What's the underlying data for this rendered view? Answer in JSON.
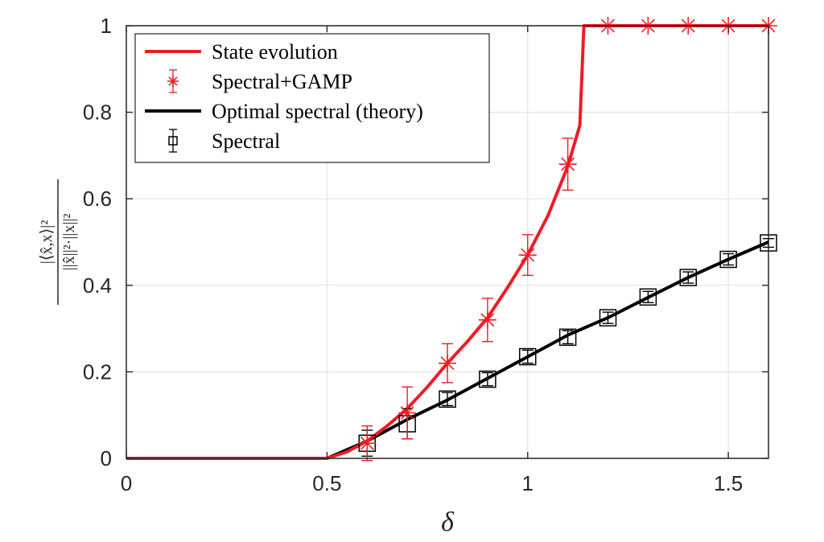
{
  "chart_data": {
    "type": "line",
    "title": "",
    "xlabel": "δ",
    "ylabel": {
      "numerator": "|⟨x̂,x⟩|²",
      "denominator": "||x̂||²·||x||²"
    },
    "xlim": [
      0,
      1.6
    ],
    "ylim": [
      0,
      1
    ],
    "xticks": [
      0,
      0.5,
      1,
      1.5
    ],
    "xtick_labels": [
      "0",
      "0.5",
      "1",
      "1.5"
    ],
    "yticks": [
      0,
      0.2,
      0.4,
      0.6,
      0.8,
      1
    ],
    "ytick_labels": [
      "0",
      "0.2",
      "0.4",
      "0.6",
      "0.8",
      "1"
    ],
    "grid": true,
    "legend_position": "top-left",
    "series": [
      {
        "name": "State evolution",
        "kind": "line",
        "color": "#ee1c25",
        "x": [
          0,
          0.5,
          0.55,
          0.6,
          0.65,
          0.7,
          0.75,
          0.8,
          0.85,
          0.9,
          0.95,
          1.0,
          1.05,
          1.1,
          1.13,
          1.14,
          1.6
        ],
        "y": [
          0,
          0,
          0.015,
          0.04,
          0.075,
          0.115,
          0.165,
          0.22,
          0.27,
          0.325,
          0.395,
          0.47,
          0.56,
          0.675,
          0.77,
          1.0,
          1.0
        ]
      },
      {
        "name": "Spectral+GAMP",
        "kind": "errorbar",
        "marker": "asterisk",
        "color": "#ee1c25",
        "x": [
          0.6,
          0.7,
          0.8,
          0.9,
          1.0,
          1.1,
          1.2,
          1.3,
          1.4,
          1.5,
          1.6
        ],
        "y": [
          0.035,
          0.105,
          0.22,
          0.32,
          0.47,
          0.68,
          1.0,
          1.0,
          1.0,
          1.0,
          1.0
        ],
        "err": [
          0.04,
          0.06,
          0.045,
          0.05,
          0.047,
          0.06,
          0,
          0,
          0,
          0,
          0
        ]
      },
      {
        "name": "Optimal spectral (theory)",
        "kind": "line",
        "color": "#000000",
        "x": [
          0,
          0.5,
          0.6,
          0.7,
          0.8,
          0.9,
          1.0,
          1.1,
          1.2,
          1.3,
          1.4,
          1.5,
          1.6
        ],
        "y": [
          0,
          0,
          0.04,
          0.09,
          0.135,
          0.185,
          0.235,
          0.285,
          0.325,
          0.372,
          0.418,
          0.46,
          0.5
        ]
      },
      {
        "name": "Spectral",
        "kind": "errorbar",
        "marker": "square",
        "color": "#000000",
        "x": [
          0.6,
          0.7,
          0.8,
          0.9,
          1.0,
          1.1,
          1.2,
          1.3,
          1.4,
          1.5,
          1.6
        ],
        "y": [
          0.035,
          0.08,
          0.137,
          0.183,
          0.235,
          0.28,
          0.325,
          0.373,
          0.418,
          0.46,
          0.498
        ],
        "err": [
          0.03,
          0.035,
          0.015,
          0.015,
          0.015,
          0.015,
          0.013,
          0.013,
          0.013,
          0.013,
          0.01
        ]
      }
    ]
  }
}
